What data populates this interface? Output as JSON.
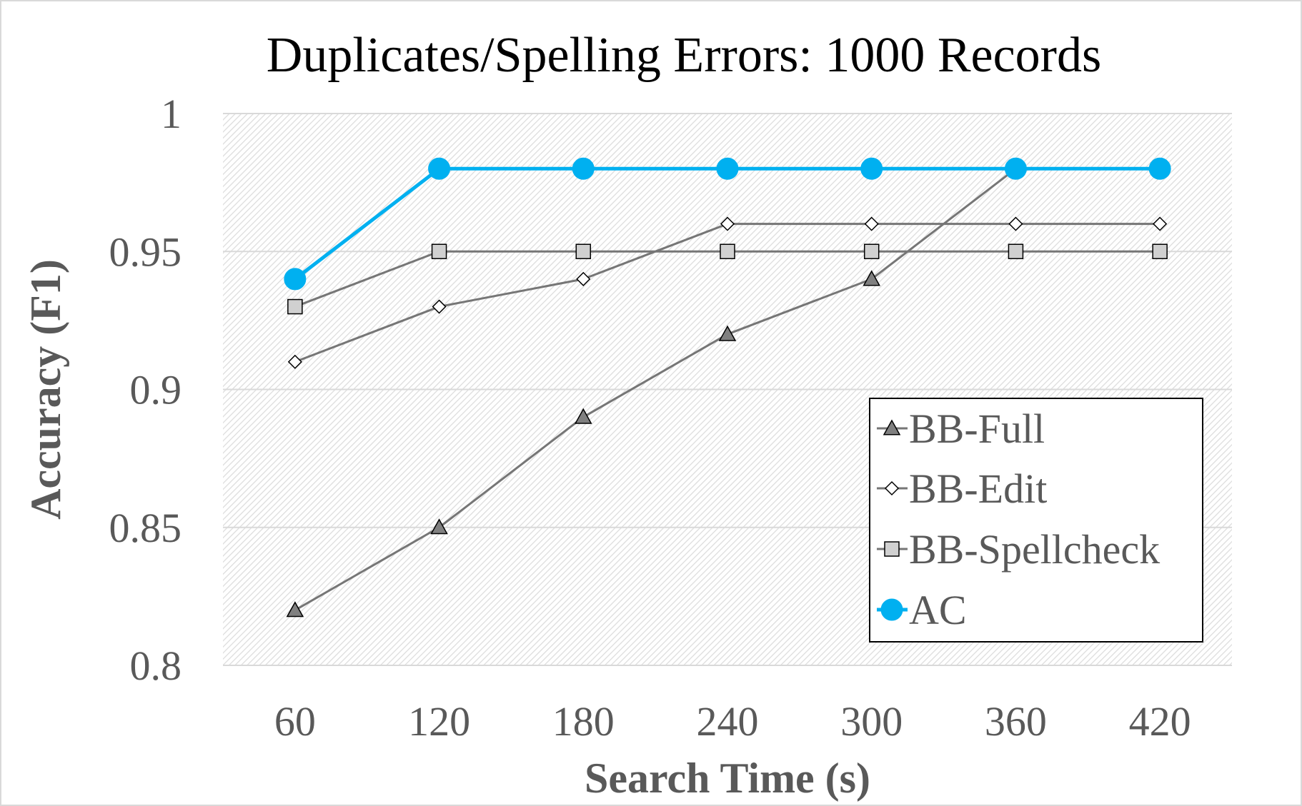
{
  "chart_data": {
    "type": "line",
    "title": "Duplicates/Spelling Errors: 1000 Records",
    "xlabel": "Search Time (s)",
    "ylabel": "Accuracy (F1)",
    "categories": [
      "60",
      "120",
      "180",
      "240",
      "300",
      "360",
      "420"
    ],
    "ylim": [
      0.8,
      1.0
    ],
    "yticks": [
      "0.8",
      "0.85",
      "0.9",
      "0.95",
      "1"
    ],
    "ytick_values": [
      0.8,
      0.85,
      0.9,
      0.95,
      1.0
    ],
    "grid": true,
    "legend_position": "bottom-right inside plot",
    "series": [
      {
        "name": "BB-Full",
        "marker": "triangle",
        "color": "#767676",
        "values": [
          0.82,
          0.85,
          0.89,
          0.92,
          0.94,
          0.98,
          0.98
        ]
      },
      {
        "name": "BB-Edit",
        "marker": "diamond",
        "color": "#767676",
        "values": [
          0.91,
          0.93,
          0.94,
          0.96,
          0.96,
          0.96,
          0.96
        ]
      },
      {
        "name": "BB-Spellcheck",
        "marker": "square",
        "color": "#767676",
        "values": [
          0.93,
          0.95,
          0.95,
          0.95,
          0.95,
          0.95,
          0.95
        ]
      },
      {
        "name": "AC",
        "marker": "circle",
        "color": "#00b0f0",
        "values": [
          0.94,
          0.98,
          0.98,
          0.98,
          0.98,
          0.98,
          0.98
        ]
      }
    ]
  }
}
